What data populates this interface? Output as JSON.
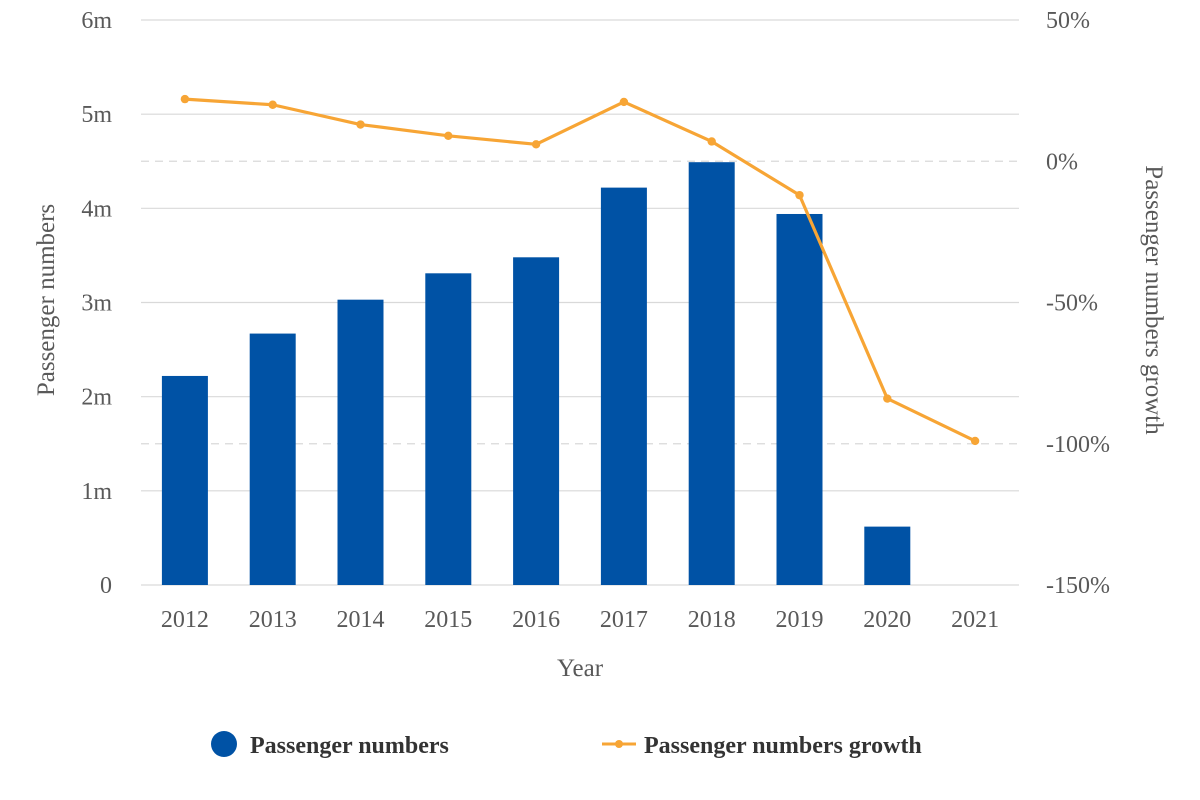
{
  "chart_data": {
    "type": "bar",
    "categories": [
      "2012",
      "2013",
      "2014",
      "2015",
      "2016",
      "2017",
      "2018",
      "2019",
      "2020",
      "2021"
    ],
    "series": [
      {
        "name": "Passenger numbers",
        "type": "bar",
        "axis": "left",
        "values": [
          2.22,
          2.67,
          3.03,
          3.31,
          3.48,
          4.22,
          4.49,
          3.94,
          0.62,
          0.0
        ]
      },
      {
        "name": "Passenger numbers growth",
        "type": "line",
        "axis": "right",
        "values": [
          22,
          20,
          13,
          9,
          6,
          21,
          7,
          -12,
          -84,
          -99
        ]
      }
    ],
    "xlabel": "Year",
    "ylabel": "Passenger numbers",
    "y2label": "Passenger numbers growth",
    "ylim": [
      0,
      6
    ],
    "y2lim": [
      -150,
      50
    ],
    "yticks": [
      "0",
      "1m",
      "2m",
      "3m",
      "4m",
      "5m",
      "6m"
    ],
    "y2ticks": [
      "-150%",
      "-100%",
      "-50%",
      "0%",
      "50%"
    ],
    "grid": true,
    "legend_position": "bottom",
    "colors": {
      "bar": "#0052a5",
      "line": "#f7a535",
      "grid": "#d9d9d9",
      "text": "#595959"
    }
  }
}
